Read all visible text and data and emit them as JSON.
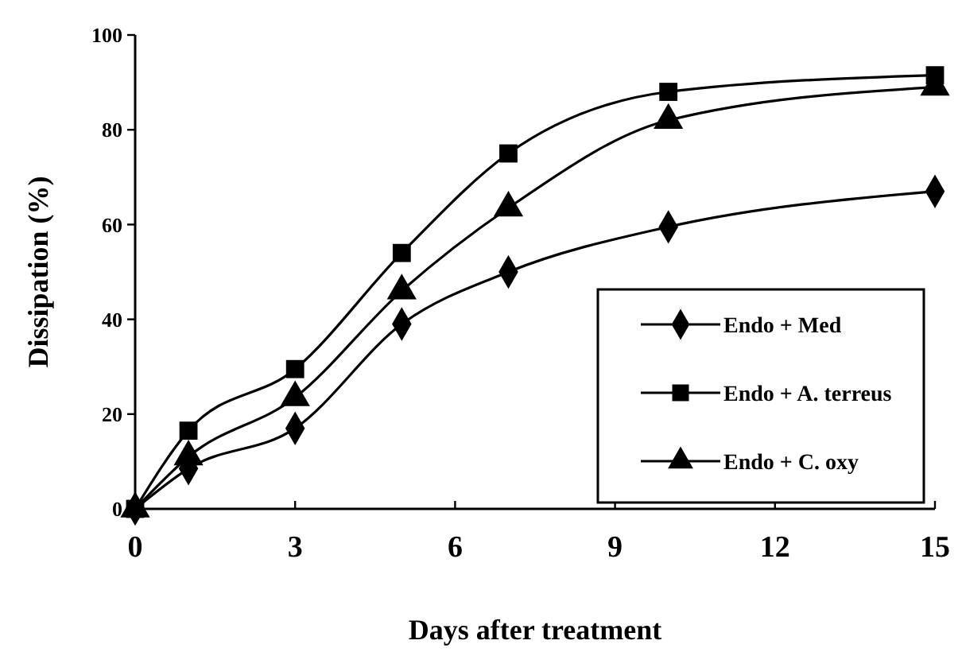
{
  "chart_data": {
    "type": "line",
    "xlabel": "Days after treatment",
    "ylabel": "Dissipation (%)",
    "x": [
      0,
      1,
      3,
      5,
      7,
      10,
      15
    ],
    "series": [
      {
        "name": "Endo + Med",
        "color": "#000000",
        "marker": "diamond",
        "values": [
          0,
          8.5,
          17,
          39,
          50,
          59.5,
          67
        ]
      },
      {
        "name": "Endo + A. terreus",
        "color": "#000000",
        "marker": "square",
        "values": [
          0,
          16.5,
          29.5,
          54,
          75,
          88,
          91.5
        ]
      },
      {
        "name": "Endo + C. oxy",
        "color": "#000000",
        "marker": "triangle",
        "values": [
          0,
          11,
          23.5,
          46,
          63.5,
          82,
          89
        ]
      }
    ],
    "xlim": [
      0,
      15
    ],
    "xticks": [
      0,
      3,
      6,
      9,
      12,
      15
    ],
    "ylim": [
      0,
      100
    ],
    "yticks": [
      0,
      20,
      40,
      60,
      80,
      100
    ],
    "legend": "bottom right",
    "grid": false,
    "line_style": "solid"
  }
}
